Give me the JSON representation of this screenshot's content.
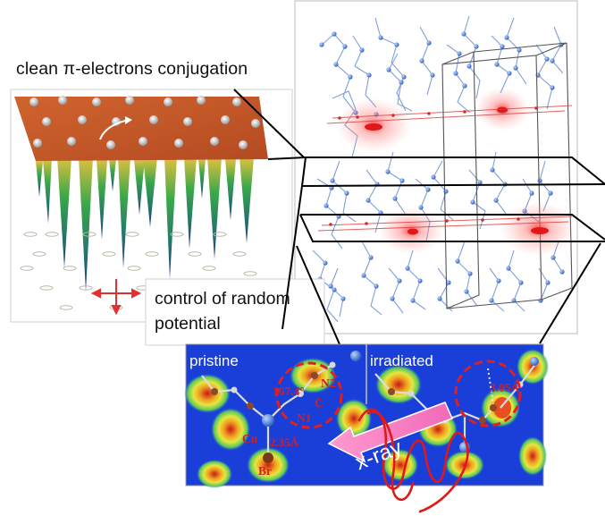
{
  "figure": {
    "title": "clean π-electrons conjugation",
    "control_text_line1": "control of random",
    "control_text_line2": "potential",
    "panels": {
      "pristine": "pristine",
      "irradiated": "irradiated"
    },
    "annotations": {
      "angle": "167.4°",
      "n2": "N2",
      "c": "C",
      "n1": "N1",
      "cu": "Cu",
      "cu_n_distance": "2.35Å",
      "br": "Br",
      "irradiated_distance": "3.05Å"
    },
    "xray": "x-ray",
    "colors": {
      "accent_red": "#d21f1f",
      "map_background": "#1a3fd8",
      "molecule_blue": "#4a82d8",
      "surface_orange": "#c8582a"
    }
  }
}
